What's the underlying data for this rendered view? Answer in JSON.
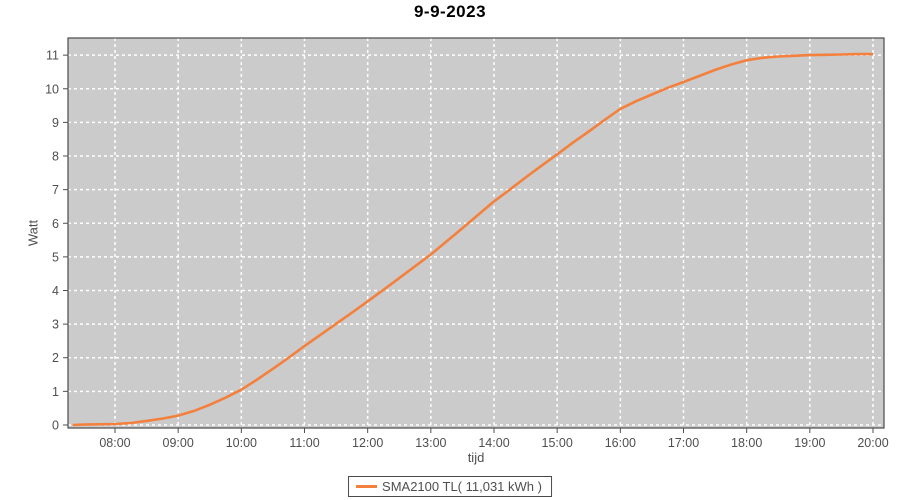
{
  "chart_data": {
    "type": "line",
    "title": "9-9-2023",
    "xlabel": "tijd",
    "ylabel": "Watt",
    "grid": true,
    "legend_position": "bottom-center",
    "legend": [
      {
        "label": "SMA2100 TL( 11,031 kWh )",
        "color": "#f4803e"
      }
    ],
    "x_ticks": [
      {
        "hour": 8,
        "label": "08:00"
      },
      {
        "hour": 9,
        "label": "09:00"
      },
      {
        "hour": 10,
        "label": "10:00"
      },
      {
        "hour": 11,
        "label": "11:00"
      },
      {
        "hour": 12,
        "label": "12:00"
      },
      {
        "hour": 13,
        "label": "13:00"
      },
      {
        "hour": 14,
        "label": "14:00"
      },
      {
        "hour": 15,
        "label": "15:00"
      },
      {
        "hour": 16,
        "label": "16:00"
      },
      {
        "hour": 17,
        "label": "17:00"
      },
      {
        "hour": 18,
        "label": "18:00"
      },
      {
        "hour": 19,
        "label": "19:00"
      },
      {
        "hour": 20,
        "label": "20:00"
      }
    ],
    "y_ticks": [
      0,
      1,
      2,
      3,
      4,
      5,
      6,
      7,
      8,
      9,
      10,
      11
    ],
    "xlim_hours": [
      7.256,
      20.174
    ],
    "ylim": [
      -0.09,
      11.51
    ],
    "series": [
      {
        "name": "SMA2100 TL",
        "color": "#f4803e",
        "x_hours": [
          7.33,
          7.5,
          7.75,
          8.0,
          8.25,
          8.5,
          8.75,
          9.0,
          9.25,
          9.5,
          9.75,
          10.0,
          10.25,
          10.5,
          10.75,
          11.0,
          11.25,
          11.5,
          11.75,
          12.0,
          12.25,
          12.5,
          12.75,
          13.0,
          13.25,
          13.5,
          13.75,
          14.0,
          14.25,
          14.5,
          14.75,
          15.0,
          15.25,
          15.5,
          15.75,
          16.0,
          16.25,
          16.5,
          16.75,
          17.0,
          17.25,
          17.5,
          17.75,
          18.0,
          18.25,
          18.5,
          18.75,
          19.0,
          19.25,
          19.5,
          19.75,
          20.0
        ],
        "values": [
          0,
          0.01,
          0.02,
          0.03,
          0.06,
          0.12,
          0.19,
          0.28,
          0.42,
          0.6,
          0.81,
          1.05,
          1.35,
          1.67,
          2.0,
          2.35,
          2.68,
          3.01,
          3.34,
          3.68,
          4.02,
          4.37,
          4.72,
          5.07,
          5.46,
          5.85,
          6.25,
          6.65,
          7.0,
          7.36,
          7.71,
          8.05,
          8.4,
          8.73,
          9.07,
          9.4,
          9.63,
          9.83,
          10.03,
          10.2,
          10.38,
          10.56,
          10.72,
          10.85,
          10.92,
          10.96,
          10.98,
          11.0,
          11.01,
          11.02,
          11.03,
          11.03
        ]
      }
    ],
    "colors": {
      "plot_background": "#cbcbcb",
      "gridline": "#ffffff",
      "axis_border": "#4a4a4a",
      "tick_text": "#4f4f4f",
      "title_text": "#000000"
    }
  }
}
